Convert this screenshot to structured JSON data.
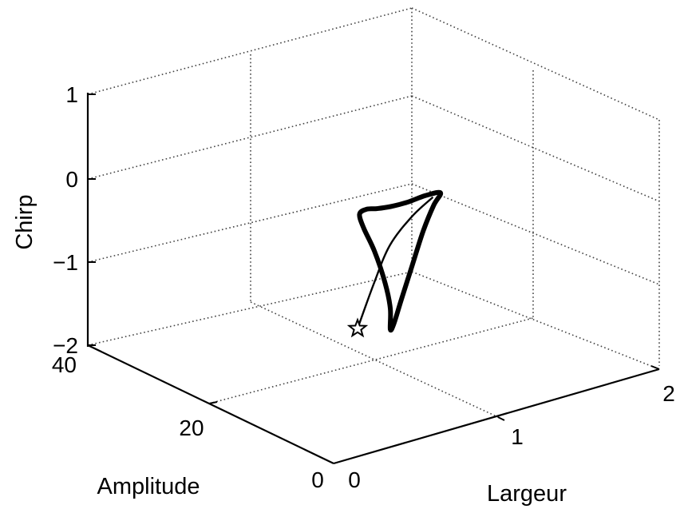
{
  "chart_data": {
    "type": "line",
    "projection": "3d",
    "grid": true,
    "title": "",
    "xlabel": "Largeur",
    "ylabel": "Amplitude",
    "zlabel": "Chirp",
    "xlim": [
      0,
      2
    ],
    "ylim": [
      0,
      40
    ],
    "zlim": [
      -2,
      1
    ],
    "xticks": [
      "0",
      "1",
      "2"
    ],
    "yticks": [
      "0",
      "20",
      "40"
    ],
    "zticks": [
      "−2",
      "−1",
      "0",
      "1"
    ],
    "series": [
      {
        "style": "thin-transient",
        "start_marker": "star",
        "points": [
          [
            0.6,
            12.0,
            -1.15
          ],
          [
            0.85,
            16.0,
            -0.9
          ],
          [
            1.1,
            20.0,
            -0.72
          ],
          [
            1.35,
            23.0,
            -0.62
          ],
          [
            1.55,
            25.0,
            -0.58
          ]
        ]
      },
      {
        "style": "thick-limit-cycle",
        "points": [
          [
            1.6,
            25.0,
            -0.55
          ],
          [
            1.52,
            24.0,
            -0.62
          ],
          [
            1.38,
            22.0,
            -0.78
          ],
          [
            1.2,
            19.0,
            -0.98
          ],
          [
            1.02,
            16.0,
            -1.18
          ],
          [
            0.88,
            13.5,
            -1.3
          ],
          [
            0.82,
            12.5,
            -1.3
          ],
          [
            0.82,
            12.5,
            -1.05
          ],
          [
            0.8,
            12.8,
            -0.75
          ],
          [
            0.78,
            14.0,
            -0.4
          ],
          [
            0.78,
            15.8,
            -0.18
          ],
          [
            0.82,
            17.5,
            -0.1
          ],
          [
            0.92,
            19.0,
            -0.15
          ],
          [
            1.05,
            20.8,
            -0.28
          ],
          [
            1.2,
            22.5,
            -0.4
          ],
          [
            1.35,
            23.8,
            -0.48
          ],
          [
            1.5,
            24.8,
            -0.52
          ],
          [
            1.6,
            25.0,
            -0.55
          ]
        ]
      }
    ]
  }
}
